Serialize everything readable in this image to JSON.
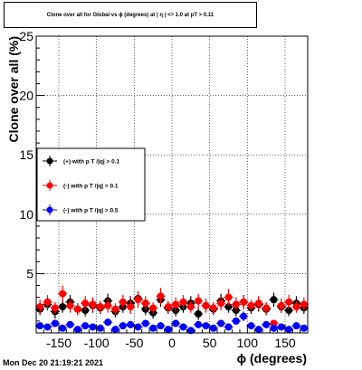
{
  "title": "Clone  over all for Global vs ϕ (degrees) at | η | <= 1.0 at pT > 0.11",
  "timestamp": "Mon Dec 20 21:19:21 2021",
  "chart_data": {
    "type": "scatter",
    "title": "Clone  over all for Global vs ϕ (degrees) at | η | <= 1.0 at pT > 0.11",
    "xlabel": "ϕ (degrees)",
    "ylabel": "Clone  over all (%)",
    "xlim": [
      -180,
      180
    ],
    "ylim": [
      0,
      25
    ],
    "x_ticks": [
      -150,
      -100,
      -50,
      0,
      50,
      100,
      150
    ],
    "y_ticks": [
      5,
      10,
      15,
      20,
      25
    ],
    "grid": true,
    "legend_position": "left",
    "colors": {
      "pos": "#000000",
      "neg": "#ff0000",
      "neg05": "#0000ff"
    },
    "series": [
      {
        "name": "(+) with p T /|q| > 0.1",
        "color": "#000000",
        "x": [
          -175,
          -165,
          -155,
          -145,
          -135,
          -125,
          -115,
          -105,
          -95,
          -85,
          -75,
          -65,
          -55,
          -45,
          -35,
          -25,
          -15,
          -5,
          5,
          15,
          25,
          35,
          45,
          55,
          65,
          75,
          85,
          95,
          105,
          115,
          125,
          135,
          145,
          155,
          165,
          175
        ],
        "y": [
          2.0,
          2.4,
          1.8,
          2.2,
          2.6,
          2.0,
          1.9,
          2.3,
          2.1,
          2.7,
          1.8,
          2.2,
          2.5,
          2.9,
          2.0,
          1.7,
          2.8,
          2.1,
          1.9,
          2.2,
          2.5,
          1.6,
          2.3,
          2.0,
          2.7,
          2.2,
          1.9,
          2.6,
          2.1,
          2.4,
          2.0,
          2.8,
          2.2,
          1.9,
          2.5,
          2.1
        ],
        "err": [
          0.5,
          0.5,
          0.6,
          0.5,
          0.6,
          0.5,
          0.5,
          0.6,
          0.5,
          0.6,
          0.5,
          0.5,
          0.6,
          0.6,
          0.5,
          0.5,
          0.6,
          0.5,
          0.5,
          0.5,
          0.6,
          0.5,
          0.5,
          0.5,
          0.6,
          0.5,
          0.5,
          0.6,
          0.5,
          0.6,
          0.5,
          0.6,
          0.5,
          0.5,
          0.6,
          0.5
        ]
      },
      {
        "name": "(-) with p T /|q| > 0.1",
        "color": "#ff0000",
        "x": [
          -175,
          -165,
          -155,
          -145,
          -135,
          -125,
          -115,
          -105,
          -95,
          -85,
          -75,
          -65,
          -55,
          -45,
          -35,
          -25,
          -15,
          -5,
          5,
          15,
          25,
          35,
          45,
          55,
          65,
          75,
          85,
          95,
          105,
          115,
          125,
          135,
          145,
          155,
          165,
          175
        ],
        "y": [
          2.2,
          2.6,
          2.1,
          3.3,
          2.3,
          2.0,
          2.5,
          2.4,
          2.2,
          2.3,
          2.0,
          2.6,
          2.2,
          2.8,
          2.5,
          2.1,
          3.1,
          2.2,
          2.4,
          2.6,
          2.2,
          2.7,
          2.3,
          2.1,
          2.5,
          3.0,
          2.4,
          2.6,
          2.3,
          2.5,
          2.1,
          0.8,
          2.3,
          2.6,
          2.2,
          2.4
        ],
        "err": [
          0.6,
          0.6,
          0.5,
          0.7,
          0.6,
          0.5,
          0.6,
          0.6,
          0.5,
          0.6,
          0.5,
          0.6,
          0.6,
          0.7,
          0.6,
          0.5,
          0.7,
          0.5,
          0.6,
          0.6,
          0.5,
          0.6,
          0.6,
          0.5,
          0.6,
          0.7,
          0.6,
          0.6,
          0.5,
          0.6,
          0.5,
          0.3,
          0.6,
          0.6,
          0.5,
          0.6
        ]
      },
      {
        "name": "(-) with p T /|q| > 0.5",
        "color": "#0000ff",
        "x": [
          -175,
          -165,
          -155,
          -145,
          -135,
          -125,
          -115,
          -105,
          -95,
          -85,
          -75,
          -65,
          -55,
          -45,
          -35,
          -25,
          -15,
          -5,
          5,
          15,
          25,
          35,
          45,
          55,
          65,
          75,
          85,
          95,
          105,
          115,
          125,
          135,
          145,
          155,
          165,
          175
        ],
        "y": [
          0.6,
          0.5,
          0.8,
          0.4,
          0.7,
          0.3,
          0.6,
          0.5,
          0.4,
          0.9,
          0.3,
          0.6,
          0.7,
          0.5,
          0.8,
          0.4,
          0.6,
          0.3,
          0.8,
          0.5,
          0.2,
          0.7,
          0.6,
          0.4,
          0.8,
          0.5,
          1.0,
          1.4,
          0.6,
          0.3,
          0.7,
          0.4,
          0.5,
          0.3,
          0.6,
          0.4
        ],
        "err": [
          0.3,
          0.3,
          0.3,
          0.2,
          0.3,
          0.2,
          0.3,
          0.3,
          0.2,
          0.3,
          0.2,
          0.3,
          0.3,
          0.3,
          0.3,
          0.2,
          0.3,
          0.2,
          0.3,
          0.3,
          0.2,
          0.3,
          0.3,
          0.2,
          0.3,
          0.3,
          0.3,
          0.4,
          0.3,
          0.2,
          0.3,
          0.2,
          0.3,
          0.2,
          0.3,
          0.2
        ]
      }
    ]
  }
}
